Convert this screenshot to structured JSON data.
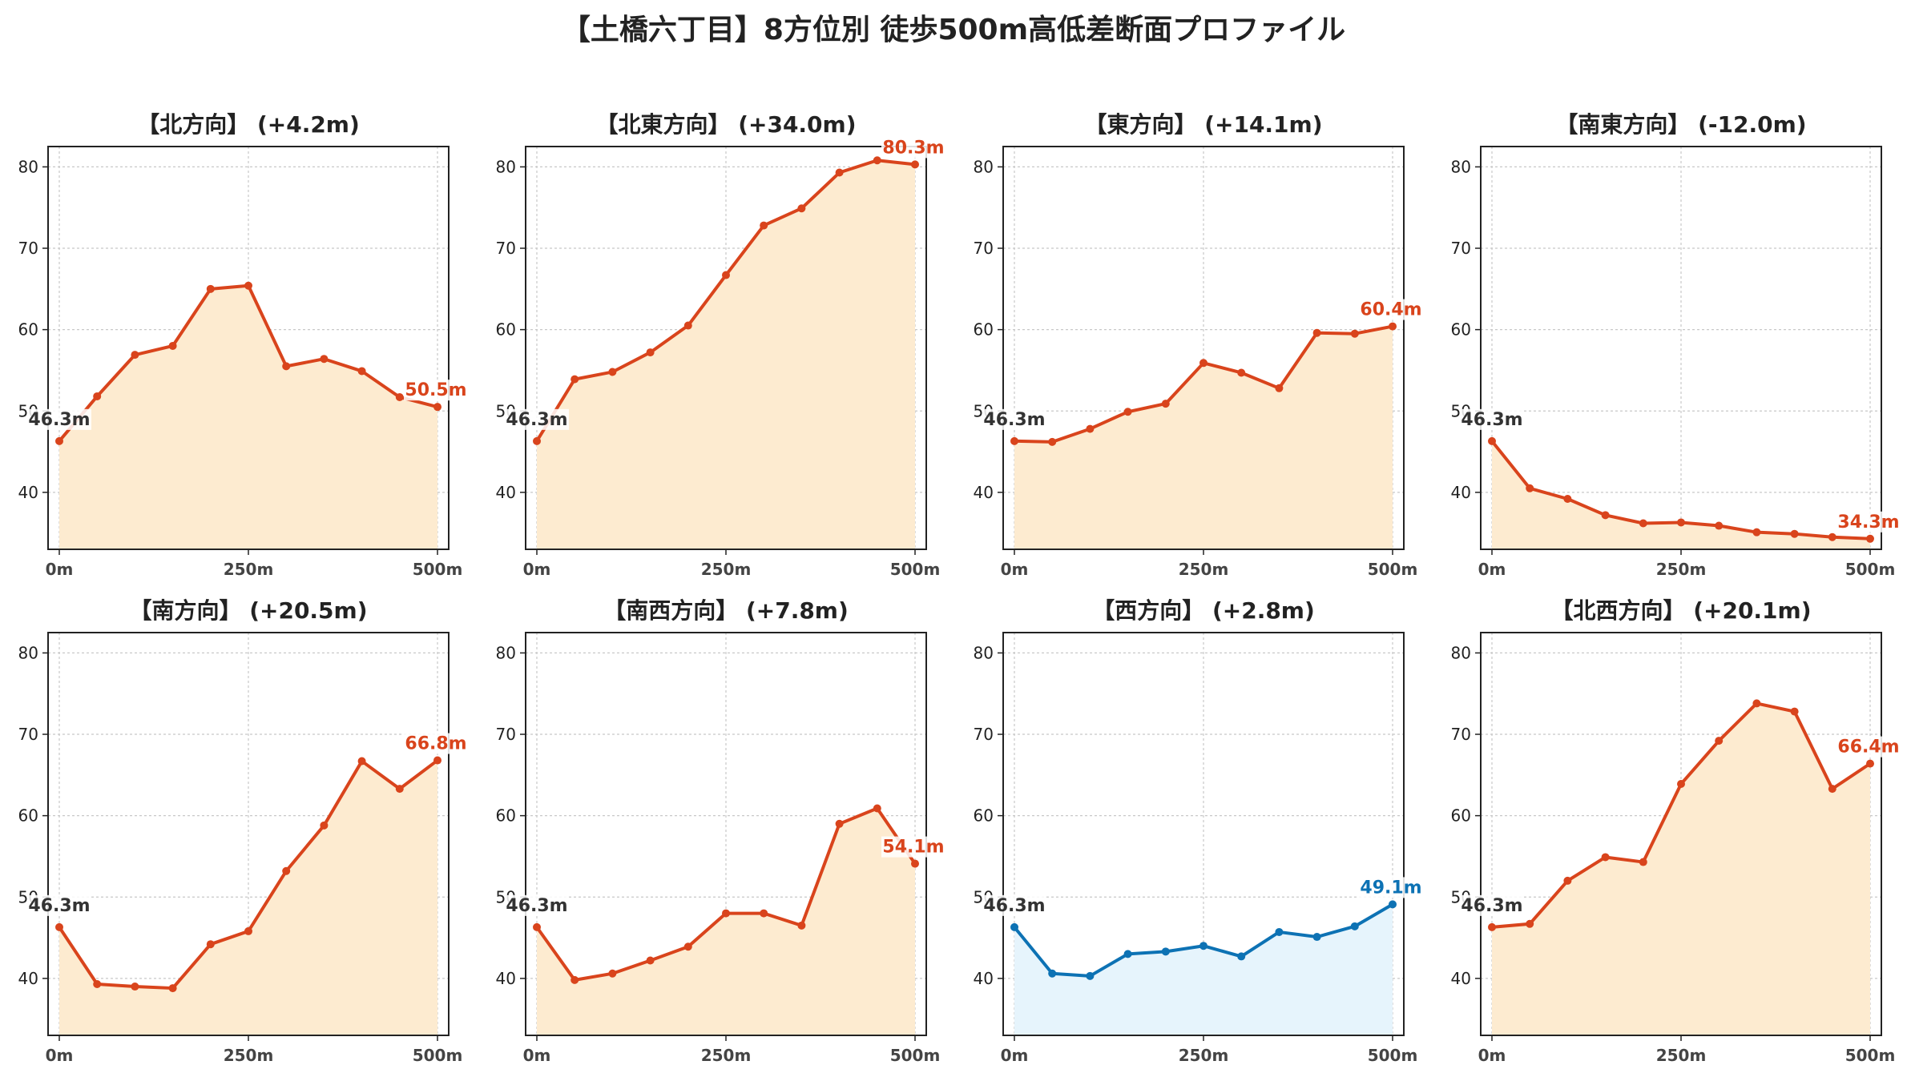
{
  "title": "【土橋六丁目】8方位別 徒歩500m高低差断面プロファイル",
  "colors": {
    "up_line": "#d9441c",
    "up_fill": "#fdebd0",
    "down_line": "#0d72b4",
    "down_fill": "#e6f4fc",
    "start_label": "#333333"
  },
  "chart_data": [
    {
      "type": "area",
      "title": "【北方向】 (+4.2m)",
      "x": [
        0,
        50,
        100,
        150,
        200,
        250,
        300,
        350,
        400,
        450,
        500
      ],
      "values": [
        46.3,
        51.8,
        56.9,
        58.0,
        65.0,
        65.4,
        55.5,
        56.4,
        54.9,
        51.7,
        50.5
      ],
      "start_label": "46.3m",
      "end_label": "50.5m",
      "color": "up",
      "xticks": [
        "0m",
        "250m",
        "500m"
      ],
      "yticks": [
        "40",
        "50",
        "60",
        "70",
        "80"
      ],
      "ylim": [
        33,
        82.5
      ],
      "grid": true
    },
    {
      "type": "area",
      "title": "【北東方向】 (+34.0m)",
      "x": [
        0,
        50,
        100,
        150,
        200,
        250,
        300,
        350,
        400,
        450,
        500
      ],
      "values": [
        46.3,
        53.9,
        54.8,
        57.2,
        60.5,
        66.7,
        72.8,
        74.9,
        79.3,
        80.8,
        80.3
      ],
      "start_label": "46.3m",
      "end_label": "80.3m",
      "color": "up",
      "xticks": [
        "0m",
        "250m",
        "500m"
      ],
      "yticks": [
        "40",
        "50",
        "60",
        "70",
        "80"
      ],
      "ylim": [
        33,
        82.5
      ],
      "grid": true
    },
    {
      "type": "area",
      "title": "【東方向】 (+14.1m)",
      "x": [
        0,
        50,
        100,
        150,
        200,
        250,
        300,
        350,
        400,
        450,
        500
      ],
      "values": [
        46.3,
        46.2,
        47.8,
        49.9,
        50.9,
        55.9,
        54.7,
        52.8,
        59.6,
        59.5,
        60.4
      ],
      "start_label": "46.3m",
      "end_label": "60.4m",
      "color": "up",
      "xticks": [
        "0m",
        "250m",
        "500m"
      ],
      "yticks": [
        "40",
        "50",
        "60",
        "70",
        "80"
      ],
      "ylim": [
        33,
        82.5
      ],
      "grid": true
    },
    {
      "type": "area",
      "title": "【南東方向】 (-12.0m)",
      "x": [
        0,
        50,
        100,
        150,
        200,
        250,
        300,
        350,
        400,
        450,
        500
      ],
      "values": [
        46.3,
        40.5,
        39.2,
        37.2,
        36.2,
        36.3,
        35.9,
        35.1,
        34.9,
        34.5,
        34.3
      ],
      "start_label": "46.3m",
      "end_label": "34.3m",
      "color": "up",
      "xticks": [
        "0m",
        "250m",
        "500m"
      ],
      "yticks": [
        "40",
        "50",
        "60",
        "70",
        "80"
      ],
      "ylim": [
        33,
        82.5
      ],
      "grid": true
    },
    {
      "type": "area",
      "title": "【南方向】 (+20.5m)",
      "x": [
        0,
        50,
        100,
        150,
        200,
        250,
        300,
        350,
        400,
        450,
        500
      ],
      "values": [
        46.3,
        39.3,
        39.0,
        38.8,
        44.2,
        45.8,
        53.2,
        58.8,
        66.7,
        63.3,
        66.8
      ],
      "start_label": "46.3m",
      "end_label": "66.8m",
      "color": "up",
      "xticks": [
        "0m",
        "250m",
        "500m"
      ],
      "yticks": [
        "40",
        "50",
        "60",
        "70",
        "80"
      ],
      "ylim": [
        33,
        82.5
      ],
      "grid": true
    },
    {
      "type": "area",
      "title": "【南西方向】 (+7.8m)",
      "x": [
        0,
        50,
        100,
        150,
        200,
        250,
        300,
        350,
        400,
        450,
        500
      ],
      "values": [
        46.3,
        39.8,
        40.6,
        42.2,
        43.9,
        48.0,
        48.0,
        46.5,
        59.0,
        60.9,
        54.1
      ],
      "start_label": "46.3m",
      "end_label": "54.1m",
      "color": "up",
      "xticks": [
        "0m",
        "250m",
        "500m"
      ],
      "yticks": [
        "40",
        "50",
        "60",
        "70",
        "80"
      ],
      "ylim": [
        33,
        82.5
      ],
      "grid": true
    },
    {
      "type": "area",
      "title": "【西方向】 (+2.8m)",
      "x": [
        0,
        50,
        100,
        150,
        200,
        250,
        300,
        350,
        400,
        450,
        500
      ],
      "values": [
        46.3,
        40.6,
        40.3,
        43.0,
        43.3,
        44.0,
        42.7,
        45.7,
        45.1,
        46.4,
        49.1
      ],
      "start_label": "46.3m",
      "end_label": "49.1m",
      "color": "down",
      "xticks": [
        "0m",
        "250m",
        "500m"
      ],
      "yticks": [
        "40",
        "50",
        "60",
        "70",
        "80"
      ],
      "ylim": [
        33,
        82.5
      ],
      "grid": true
    },
    {
      "type": "area",
      "title": "【北西方向】 (+20.1m)",
      "x": [
        0,
        50,
        100,
        150,
        200,
        250,
        300,
        350,
        400,
        450,
        500
      ],
      "values": [
        46.3,
        46.7,
        52.0,
        54.9,
        54.3,
        63.9,
        69.2,
        73.8,
        72.8,
        63.3,
        66.4
      ],
      "start_label": "46.3m",
      "end_label": "66.4m",
      "color": "up",
      "xticks": [
        "0m",
        "250m",
        "500m"
      ],
      "yticks": [
        "40",
        "50",
        "60",
        "70",
        "80"
      ],
      "ylim": [
        33,
        82.5
      ],
      "grid": true
    }
  ]
}
